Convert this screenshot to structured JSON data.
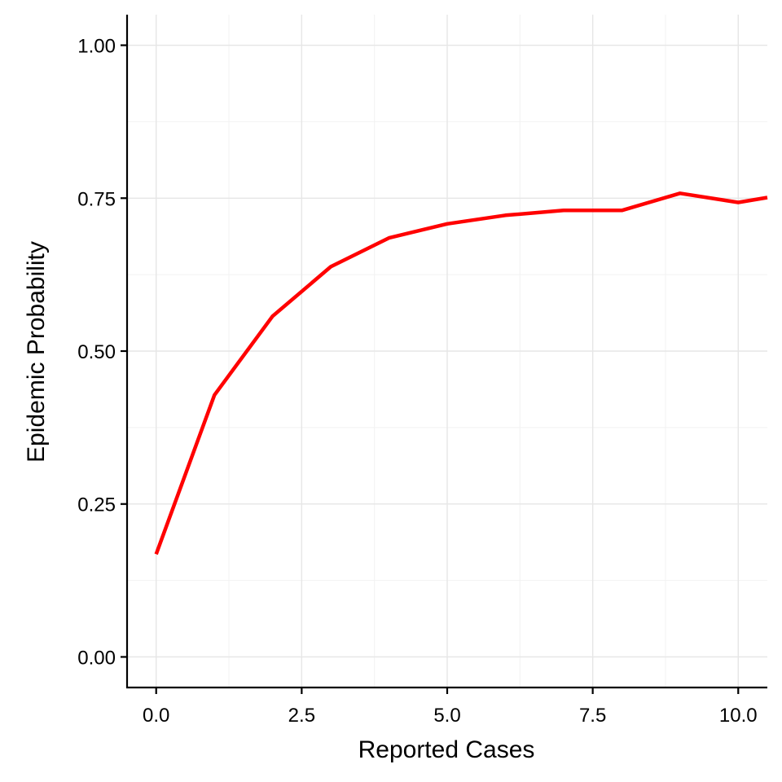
{
  "chart_data": {
    "type": "line",
    "title": "",
    "xlabel": "Reported Cases",
    "ylabel": "Epidemic Probability",
    "xlim": [
      -0.5,
      10.5
    ],
    "ylim": [
      -0.05,
      1.05
    ],
    "x_ticks": [
      0,
      2.5,
      5,
      7.5,
      10
    ],
    "x_tick_labels": [
      "0.0",
      "2.5",
      "5.0",
      "7.5",
      "10.0"
    ],
    "y_ticks": [
      0,
      0.25,
      0.5,
      0.75,
      1
    ],
    "y_tick_labels": [
      "0.00",
      "0.25",
      "0.50",
      "0.75",
      "1.00"
    ],
    "grid": true,
    "legend": "none",
    "series": [
      {
        "color": "#ff0000",
        "x": [
          0,
          1,
          2,
          3,
          4,
          5,
          6,
          7,
          8,
          9,
          10,
          10.5
        ],
        "y": [
          0.168,
          0.428,
          0.557,
          0.638,
          0.685,
          0.708,
          0.722,
          0.73,
          0.73,
          0.758,
          0.743,
          0.751
        ]
      }
    ]
  }
}
